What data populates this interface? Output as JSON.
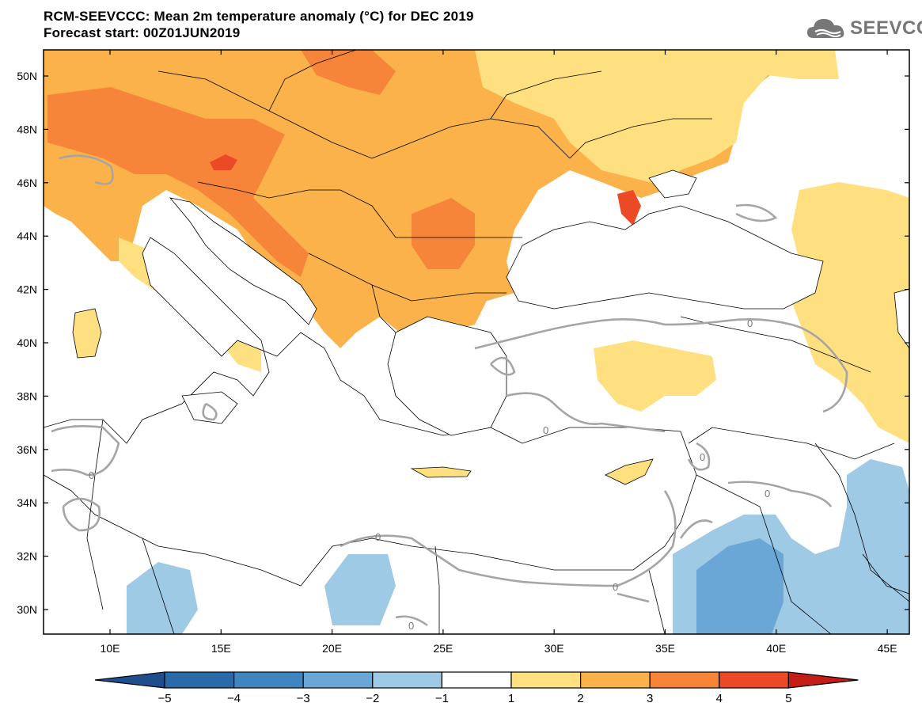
{
  "header": {
    "title_line1": "RCM-SEEVCCC: Mean 2m temperature anomaly (°C) for DEC 2019",
    "title_line2": "Forecast start: 00Z01JUN2019"
  },
  "logo": {
    "text": "SEEVCCC",
    "icon": "cloud-icon"
  },
  "map": {
    "lat_labels": [
      "50N",
      "48N",
      "46N",
      "44N",
      "42N",
      "40N",
      "38N",
      "36N",
      "34N",
      "32N",
      "30N"
    ],
    "lon_labels": [
      "10E",
      "15E",
      "20E",
      "25E",
      "30E",
      "35E",
      "40E",
      "45E"
    ],
    "contour_label": "0"
  },
  "colorbar": {
    "labels": [
      "−5",
      "−4",
      "−3",
      "−2",
      "−1",
      "1",
      "2",
      "3",
      "4",
      "5"
    ],
    "colors": [
      "#1f4e8c",
      "#2b6aa8",
      "#3f86c0",
      "#6aa6d6",
      "#9fcae6",
      "#ffffff",
      "#ffe080",
      "#fbb24a",
      "#f6853a",
      "#ec4a27",
      "#c31d16"
    ]
  }
}
